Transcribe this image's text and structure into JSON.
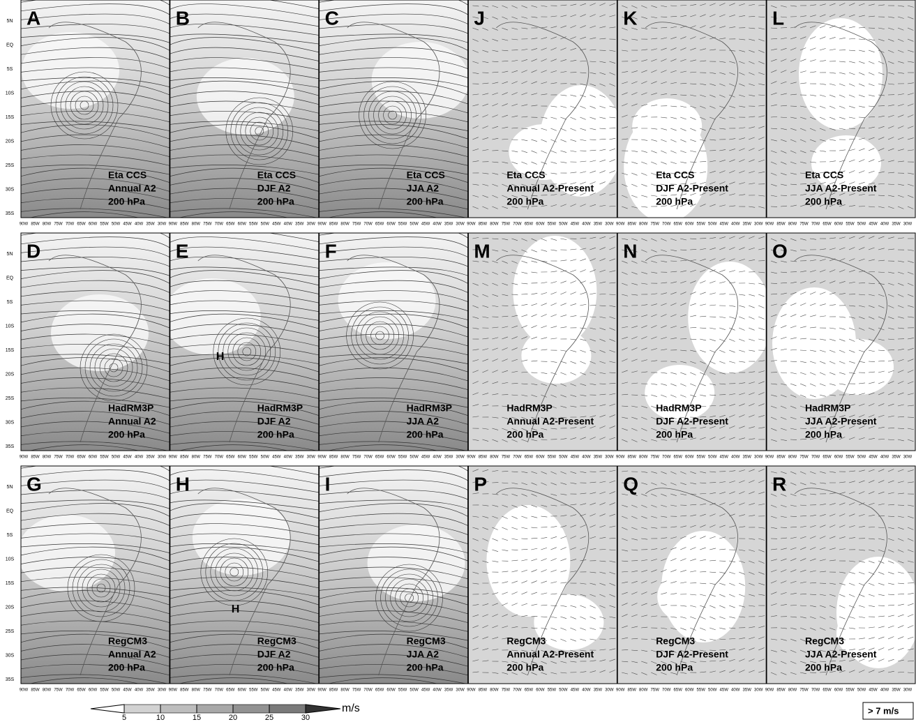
{
  "panels": [
    {
      "letter": "A",
      "label": [
        "Eta CCS",
        "Annual A2",
        "200 hPa"
      ]
    },
    {
      "letter": "B",
      "label": [
        "Eta CCS",
        "DJF A2",
        "200 hPa"
      ]
    },
    {
      "letter": "C",
      "label": [
        "Eta CCS",
        "JJA A2",
        "200 hPa"
      ]
    },
    {
      "letter": "J",
      "label": [
        "Eta CCS",
        "Annual A2-Present",
        "200 hPa"
      ]
    },
    {
      "letter": "K",
      "label": [
        "Eta CCS",
        "DJF A2-Present",
        "200 hPa"
      ]
    },
    {
      "letter": "L",
      "label": [
        "Eta CCS",
        "JJA A2-Present",
        "200 hPa"
      ]
    },
    {
      "letter": "D",
      "label": [
        "HadRM3P",
        "Annual A2",
        "200 hPa"
      ]
    },
    {
      "letter": "E",
      "label": [
        "HadRM3P",
        "DJF A2",
        "200 hPa"
      ],
      "marker": "H"
    },
    {
      "letter": "F",
      "label": [
        "HadRM3P",
        "JJA A2",
        "200 hPa"
      ]
    },
    {
      "letter": "M",
      "label": [
        "HadRM3P",
        "Annual A2-Present",
        "200 hPa"
      ]
    },
    {
      "letter": "N",
      "label": [
        "HadRM3P",
        "DJF A2-Present",
        "200 hPa"
      ]
    },
    {
      "letter": "O",
      "label": [
        "HadRM3P",
        "JJA A2-Present",
        "200 hPa"
      ]
    },
    {
      "letter": "G",
      "label": [
        "RegCM3",
        "Annual A2",
        "200 hPa"
      ]
    },
    {
      "letter": "H",
      "label": [
        "RegCM3",
        "DJF A2",
        "200 hPa"
      ],
      "marker": "H"
    },
    {
      "letter": "I",
      "label": [
        "RegCM3",
        "JJA A2",
        "200 hPa"
      ]
    },
    {
      "letter": "P",
      "label": [
        "RegCM3",
        "Annual A2-Present",
        "200 hPa"
      ]
    },
    {
      "letter": "Q",
      "label": [
        "RegCM3",
        "DJF A2-Present",
        "200 hPa"
      ]
    },
    {
      "letter": "R",
      "label": [
        "RegCM3",
        "JJA A2-Present",
        "200 hPa"
      ]
    }
  ],
  "lat_ticks": [
    "5N",
    "EQ",
    "5S",
    "10S",
    "15S",
    "20S",
    "25S",
    "30S",
    "35S"
  ],
  "lon_ticks": [
    "90W",
    "85W",
    "80W",
    "75W",
    "70W",
    "65W",
    "60W",
    "55W",
    "50W",
    "45W",
    "40W",
    "35W",
    "30W"
  ],
  "colorbar": {
    "ticks": [
      5,
      10,
      15,
      20,
      25,
      30
    ],
    "unit": "m/s"
  },
  "vector_legend": "> 7 m/s"
}
